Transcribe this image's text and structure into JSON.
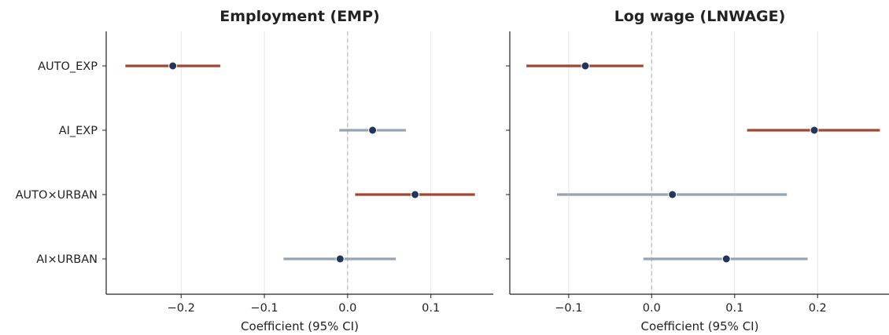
{
  "chart_data": [
    {
      "type": "forest",
      "title": "Employment (EMP)",
      "xlabel": "Coefficient (95% CI)",
      "ylabel": "",
      "xlim": [
        -0.29,
        0.175
      ],
      "xticks": [
        -0.2,
        -0.1,
        0.0,
        0.1
      ],
      "xtick_labels": [
        "−0.2",
        "−0.1",
        "0.0",
        "0.1"
      ],
      "reference_line": 0,
      "grid": "vertical",
      "categories": [
        "AUTO_EXP",
        "AI_EXP",
        "AUTO×URBAN",
        "AI×URBAN"
      ],
      "estimates": [
        -0.21,
        0.03,
        0.081,
        -0.009
      ],
      "ci_low": [
        -0.267,
        -0.01,
        0.009,
        -0.077
      ],
      "ci_high": [
        -0.153,
        0.07,
        0.153,
        0.058
      ],
      "significant": [
        true,
        false,
        true,
        false
      ]
    },
    {
      "type": "forest",
      "title": "Log wage (LNWAGE)",
      "xlabel": "Coefficient (95% CI)",
      "ylabel": "",
      "xlim": [
        -0.171,
        0.287
      ],
      "xticks": [
        -0.1,
        0.0,
        0.1,
        0.2
      ],
      "xtick_labels": [
        "−0.1",
        "0.0",
        "0.1",
        "0.2"
      ],
      "reference_line": 0,
      "grid": "vertical",
      "categories": [
        "AUTO_EXP",
        "AI_EXP",
        "AUTO×URBAN",
        "AI×URBAN"
      ],
      "estimates": [
        -0.08,
        0.196,
        0.025,
        0.09
      ],
      "ci_low": [
        -0.151,
        0.115,
        -0.114,
        -0.01
      ],
      "ci_high": [
        -0.01,
        0.275,
        0.163,
        0.188
      ],
      "significant": [
        true,
        true,
        false,
        false
      ]
    }
  ],
  "colors": {
    "significant": "#a5452f",
    "not_significant": "#97a3b4",
    "point": "#22365a",
    "zero_line": "#bbbbbb",
    "grid": "#e6e6e6",
    "axis": "#222222"
  }
}
